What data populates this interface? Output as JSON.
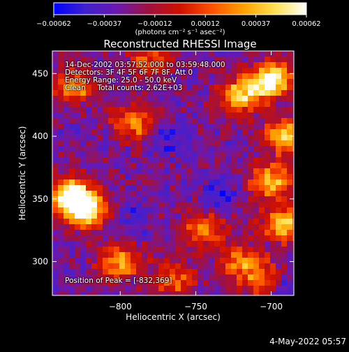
{
  "chart_data": {
    "type": "heatmap",
    "title": "Reconstructed RHESSI Image",
    "xlabel": "Heliocentric X (arcsec)",
    "ylabel": "Heliocentric Y (arcsec)",
    "xlim": [
      -845,
      -685
    ],
    "ylim": [
      273,
      468
    ],
    "x_ticks": [
      {
        "value": -800,
        "label": "−800"
      },
      {
        "value": -750,
        "label": "−750"
      },
      {
        "value": -700,
        "label": "−700"
      }
    ],
    "y_ticks": [
      {
        "value": 300,
        "label": "300"
      },
      {
        "value": 350,
        "label": "350"
      },
      {
        "value": 400,
        "label": "400"
      },
      {
        "value": 450,
        "label": "450"
      }
    ],
    "colorbar": {
      "min": -0.00062,
      "max": 0.00062,
      "tick_labels": [
        "−0.00062",
        "−0.00037",
        "−0.00012",
        "0.00012",
        "0.00037",
        "0.00062"
      ],
      "units_label": "(photons cm⁻² s⁻¹ asec⁻²)",
      "colors": [
        "#0000ff",
        "#4020d0",
        "#6a18b0",
        "#a01040",
        "#d01000",
        "#ff5000",
        "#ffa000",
        "#ffe050",
        "#ffffff"
      ]
    },
    "peak": {
      "x": -832,
      "y": 369
    },
    "hot_regions": [
      {
        "x": -832,
        "y": 352,
        "intensity": 1.0
      },
      {
        "x": -822,
        "y": 340,
        "intensity": 0.8
      },
      {
        "x": -700,
        "y": 445,
        "intensity": 0.95
      },
      {
        "x": -720,
        "y": 432,
        "intensity": 0.75
      },
      {
        "x": -690,
        "y": 400,
        "intensity": 0.75
      },
      {
        "x": -700,
        "y": 365,
        "intensity": 0.7
      },
      {
        "x": -692,
        "y": 330,
        "intensity": 0.7
      },
      {
        "x": -830,
        "y": 440,
        "intensity": 0.6
      },
      {
        "x": -790,
        "y": 410,
        "intensity": 0.6
      },
      {
        "x": -800,
        "y": 300,
        "intensity": 0.65
      },
      {
        "x": -745,
        "y": 325,
        "intensity": 0.55
      },
      {
        "x": -720,
        "y": 300,
        "intensity": 0.55
      },
      {
        "x": -765,
        "y": 285,
        "intensity": 0.45
      },
      {
        "x": -780,
        "y": 460,
        "intensity": 0.45
      },
      {
        "x": -705,
        "y": 285,
        "intensity": 0.5
      }
    ],
    "cold_regions": [
      {
        "x": -770,
        "y": 398,
        "intensity": 0.6
      },
      {
        "x": -735,
        "y": 352,
        "intensity": 0.55
      },
      {
        "x": -690,
        "y": 282,
        "intensity": 0.6
      },
      {
        "x": -795,
        "y": 335,
        "intensity": 0.45
      }
    ]
  },
  "annotations": {
    "line1": "14-Dec-2002 03:57:52.000 to 03:59:48.000",
    "line2": "Detectors: 3F 4F 5F 6F 7F 8F, Att 0",
    "line3": "Energy Range: 25.0 - 50.0 keV",
    "line4": "Clean     Total counts: 2.62E+03",
    "peak_text": "Position of Peak = [-832,369]"
  },
  "timestamp": "4-May-2022 05:57"
}
